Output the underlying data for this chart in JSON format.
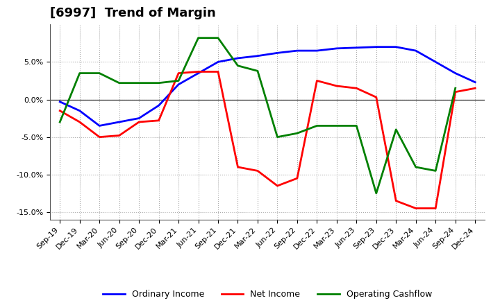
{
  "title": "[6997]  Trend of Margin",
  "x_labels": [
    "Sep-19",
    "Dec-19",
    "Mar-20",
    "Jun-20",
    "Sep-20",
    "Dec-20",
    "Mar-21",
    "Jun-21",
    "Sep-21",
    "Dec-21",
    "Mar-22",
    "Jun-22",
    "Sep-22",
    "Dec-22",
    "Mar-23",
    "Jun-23",
    "Sep-23",
    "Dec-23",
    "Mar-24",
    "Jun-24",
    "Sep-24",
    "Dec-24"
  ],
  "ordinary_income": [
    -0.3,
    -1.5,
    -3.5,
    -3.0,
    -2.5,
    -0.8,
    2.0,
    3.5,
    5.0,
    5.5,
    5.8,
    6.2,
    6.5,
    6.5,
    6.8,
    6.9,
    7.0,
    7.0,
    6.5,
    5.0,
    3.5,
    2.3
  ],
  "net_income": [
    -1.5,
    -3.0,
    -5.0,
    -4.8,
    -3.0,
    -2.8,
    3.5,
    3.7,
    3.7,
    -9.0,
    -9.5,
    -11.5,
    -10.5,
    2.5,
    1.8,
    1.5,
    0.3,
    -13.5,
    -14.5,
    -14.5,
    1.0,
    1.5
  ],
  "operating_cashflow": [
    -3.0,
    3.5,
    3.5,
    2.2,
    2.2,
    2.2,
    2.5,
    8.2,
    8.2,
    4.5,
    3.8,
    -5.0,
    -4.5,
    -3.5,
    -3.5,
    -3.5,
    -12.5,
    -4.0,
    -9.0,
    -9.5,
    1.5,
    null
  ],
  "ylim": [
    -16,
    10
  ],
  "yticks": [
    -15,
    -10,
    -5,
    0,
    5
  ],
  "colors": {
    "ordinary_income": "#0000FF",
    "net_income": "#FF0000",
    "operating_cashflow": "#008000"
  },
  "background_color": "#FFFFFF",
  "plot_bg_color": "#FFFFFF",
  "grid_color": "#AAAAAA",
  "line_width": 2.0,
  "title_fontsize": 13,
  "tick_fontsize": 8,
  "legend_fontsize": 9
}
